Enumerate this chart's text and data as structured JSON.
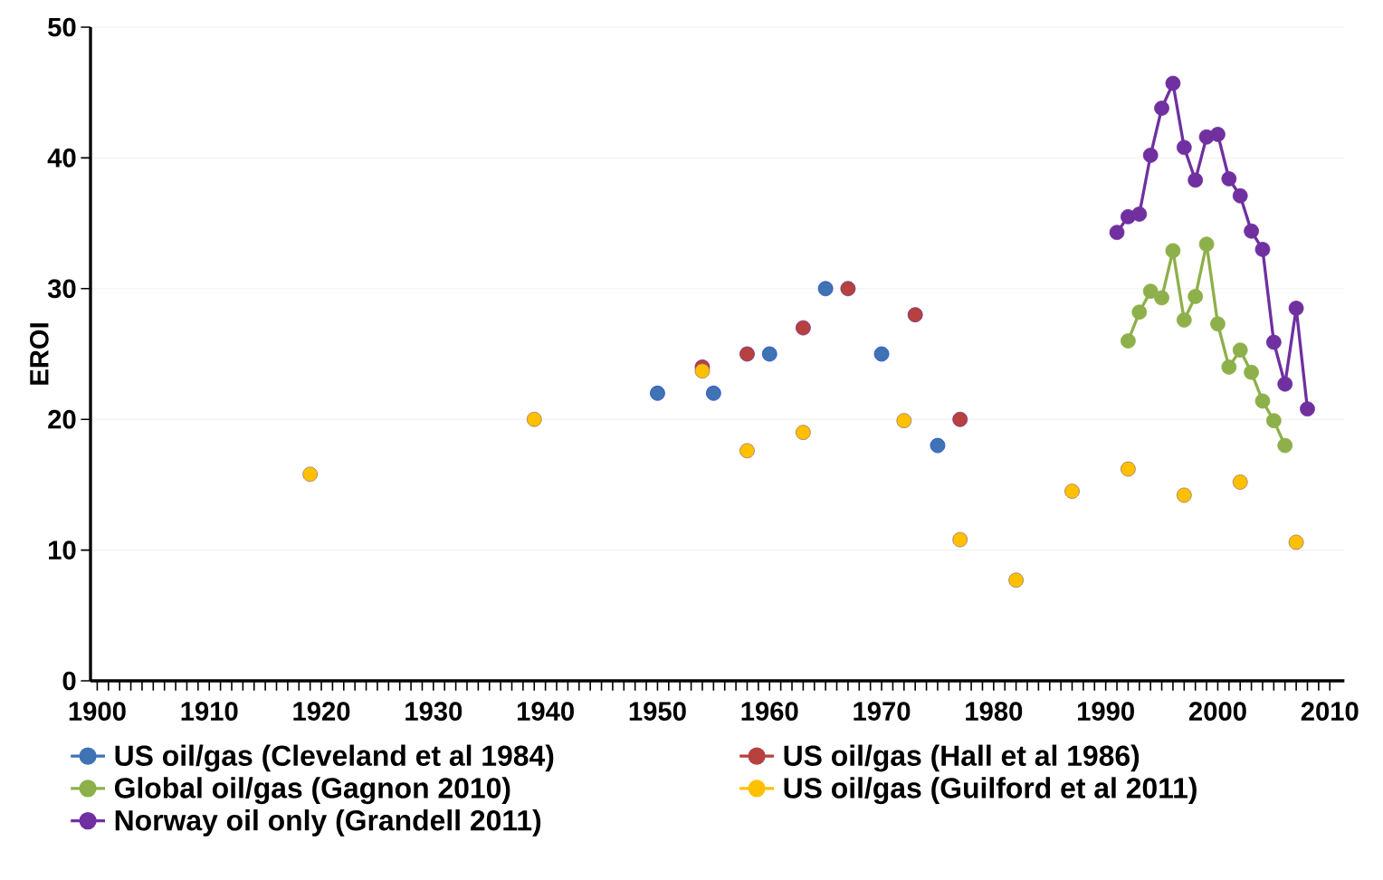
{
  "chart_data": {
    "type": "line",
    "ylabel": "EROI",
    "xlim": [
      1899.4,
      2011.3
    ],
    "ylim": [
      0,
      50
    ],
    "xticks": [
      1900,
      1910,
      1920,
      1930,
      1940,
      1950,
      1960,
      1970,
      1980,
      1990,
      2000,
      2010
    ],
    "yticks": [
      0,
      10,
      20,
      30,
      40,
      50
    ],
    "grid": "y",
    "legend": "bottom",
    "marker": "circle",
    "series": [
      {
        "name": "US oil/gas (Cleveland et al 1984)",
        "type": "scatter",
        "color": "#3f73b3",
        "x": [
          1950,
          1955,
          1960,
          1965,
          1970,
          1975
        ],
        "values": [
          22,
          22,
          25,
          30,
          25,
          18
        ]
      },
      {
        "name": "US oil/gas (Hall et al 1986)",
        "type": "scatter",
        "color": "#b7413e",
        "x": [
          1954,
          1958,
          1963,
          1967,
          1973,
          1977
        ],
        "values": [
          24,
          25,
          27,
          30,
          28,
          20
        ]
      },
      {
        "name": "Global oil/gas (Gagnon 2010)",
        "color": "#8db04a",
        "x": [
          1992,
          1993,
          1994,
          1995,
          1996,
          1997,
          1998,
          1999,
          2000,
          2001,
          2002,
          2003,
          2004,
          2005,
          2006
        ],
        "values": [
          26,
          28.2,
          29.8,
          29.3,
          32.9,
          27.6,
          29.4,
          33.4,
          27.3,
          24,
          25.3,
          23.6,
          21.4,
          19.9,
          18
        ]
      },
      {
        "name": "US oil/gas (Guilford et al 2011)",
        "type": "scatter",
        "color": "#ffc000",
        "x": [
          1919,
          1939,
          1954,
          1958,
          1963,
          1972,
          1977,
          1982,
          1987,
          1992,
          1997,
          2002,
          2007
        ],
        "values": [
          15.8,
          20,
          23.7,
          17.6,
          19,
          19.9,
          10.8,
          7.7,
          14.5,
          16.2,
          14.2,
          15.2,
          10.6
        ]
      },
      {
        "name": "Norway oil only (Grandell 2011)",
        "color": "#7030a0",
        "x": [
          1991,
          1992,
          1993,
          1994,
          1995,
          1996,
          1997,
          1998,
          1999,
          2000,
          2001,
          2002,
          2003,
          2004,
          2005,
          2006,
          2007,
          2008
        ],
        "values": [
          34.3,
          35.5,
          35.7,
          40.2,
          43.8,
          45.7,
          40.8,
          38.3,
          41.6,
          41.8,
          38.4,
          37.1,
          34.4,
          33,
          25.9,
          22.7,
          28.5,
          20.8
        ]
      }
    ]
  }
}
